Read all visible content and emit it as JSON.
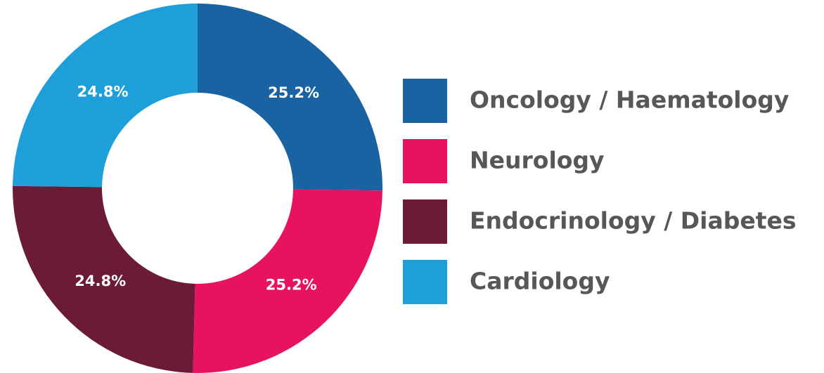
{
  "chart_data": {
    "type": "donut",
    "categories": [
      "Oncology / Haematology",
      "Neurology",
      "Endocrinology / Diabetes",
      "Cardiology"
    ],
    "values": [
      25.2,
      25.2,
      24.8,
      24.8
    ],
    "value_labels": [
      "25.2%",
      "25.2%",
      "24.8%",
      "24.8%"
    ],
    "colors": [
      "#1a63a3",
      "#e8135f",
      "#6b1a38",
      "#1f9fd9"
    ]
  }
}
